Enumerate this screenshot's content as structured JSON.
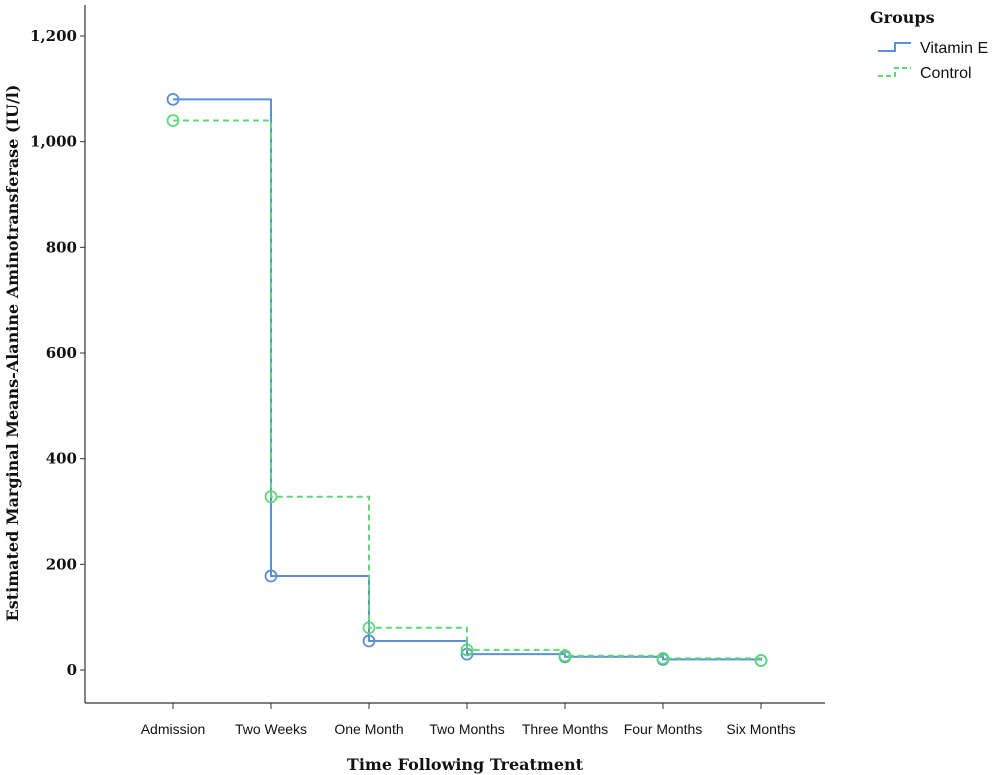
{
  "chart_data": {
    "type": "line",
    "step": true,
    "xlabel": "Time Following Treatment",
    "ylabel": "Estimated Marginal Means-Alanine Aminotransferase (IU/l)",
    "ylim": [
      0,
      1200
    ],
    "yticks": [
      0,
      200,
      400,
      600,
      800,
      1000,
      1200
    ],
    "ytick_labels": [
      "0",
      "200",
      "400",
      "600",
      "800",
      "1,000",
      "1,200"
    ],
    "categories": [
      "Admission",
      "Two Weeks",
      "One Month",
      "Two Months",
      "Three Months",
      "Four Months",
      "Six Months"
    ],
    "legend": {
      "title": "Groups",
      "placement": "top-right"
    },
    "series": [
      {
        "name": "Vitamin E",
        "color": "#5b8fd6",
        "dash": "solid",
        "values": [
          1080,
          178,
          55,
          30,
          25,
          20,
          18
        ]
      },
      {
        "name": "Control",
        "color": "#5fd87a",
        "dash": "dashed",
        "values": [
          1040,
          328,
          80,
          38,
          27,
          22,
          18
        ]
      }
    ],
    "grid": false
  }
}
